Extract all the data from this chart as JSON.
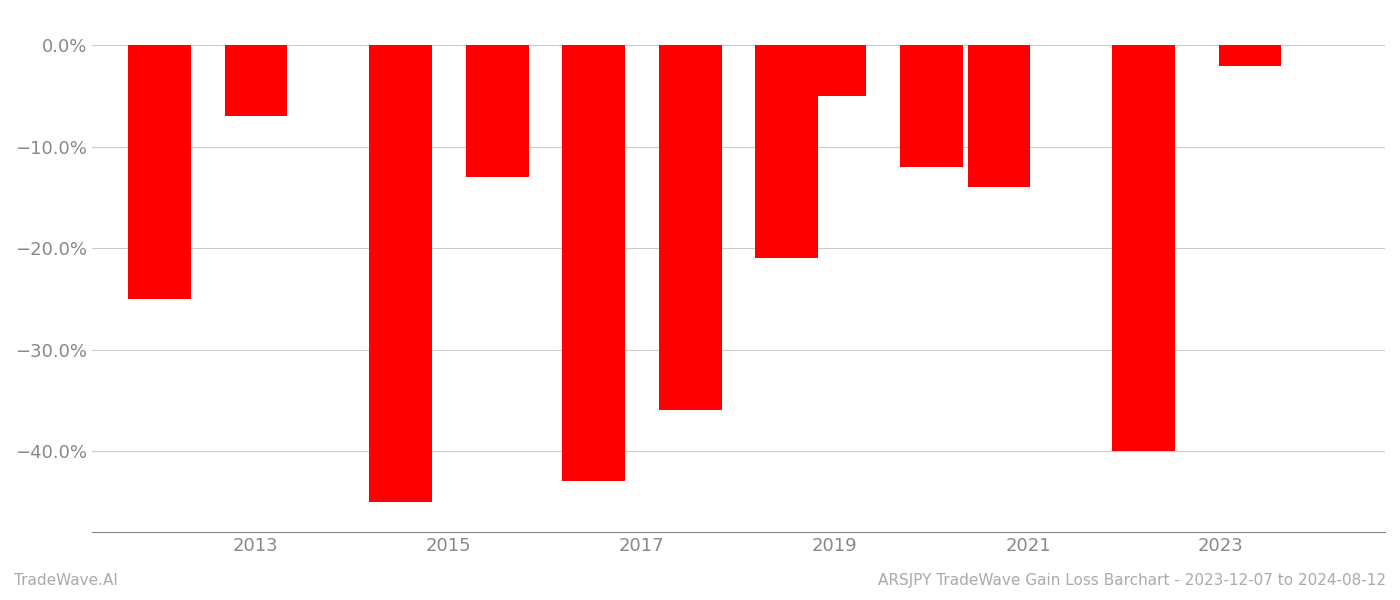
{
  "years": [
    2012.5,
    2013.0,
    2013.5,
    2014.5,
    2015.5,
    2016.5,
    2017.0,
    2017.5,
    2018.5,
    2019.5,
    2020.0,
    2020.5,
    2021.5,
    2022.0,
    2023.0,
    2023.5
  ],
  "values": [
    -25.0,
    -7.0,
    null,
    -45.0,
    -13.0,
    -43.0,
    -36.0,
    -21.0,
    -5.0,
    -12.0,
    -14.0,
    -40.0,
    -2.0,
    null,
    null,
    null
  ],
  "bar_color": "#ff0000",
  "background_color": "#ffffff",
  "grid_color": "#cccccc",
  "axis_color": "#888888",
  "tick_label_color": "#888888",
  "yticks": [
    0.0,
    -10.0,
    -20.0,
    -30.0,
    -40.0
  ],
  "ytick_labels": [
    "0.0%",
    "−10.0%",
    "−20.0%",
    "−30.0%",
    "−40.0%"
  ],
  "ylim": [
    -48,
    3
  ],
  "xlim": [
    2011.3,
    2024.7
  ],
  "xtick_years": [
    2013,
    2015,
    2017,
    2019,
    2021,
    2023
  ],
  "bar_width": 0.65,
  "footer_left": "TradeWave.AI",
  "footer_right": "ARSJPY TradeWave Gain Loss Barchart - 2023-12-07 to 2024-08-12",
  "footer_color": "#aaaaaa",
  "footer_fontsize": 11,
  "tick_fontsize": 13,
  "figsize": [
    14.0,
    6.0
  ],
  "dpi": 100
}
